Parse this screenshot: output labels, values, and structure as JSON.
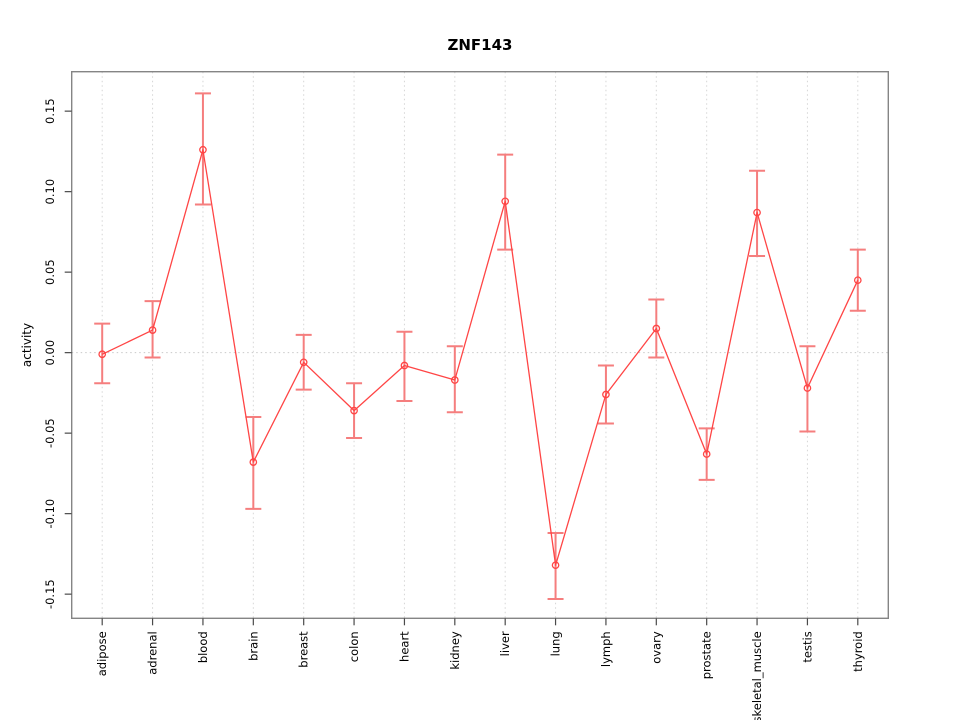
{
  "page": {
    "background": "#ffffff"
  },
  "chart_data": {
    "type": "line",
    "title": "ZNF143",
    "xlabel": "",
    "ylabel": "activity",
    "legend_position": "none",
    "marker": "open-circle",
    "error_bars": true,
    "categories": [
      "adipose",
      "adrenal",
      "blood",
      "brain",
      "breast",
      "colon",
      "heart",
      "kidney",
      "liver",
      "lung",
      "lymph",
      "ovary",
      "prostate",
      "skeletal_muscle",
      "testis",
      "thyroid"
    ],
    "series": [
      {
        "name": "ZNF143 activity",
        "values": [
          -0.001,
          0.014,
          0.126,
          -0.068,
          -0.006,
          -0.036,
          -0.008,
          -0.017,
          0.094,
          -0.132,
          -0.026,
          0.015,
          -0.063,
          0.087,
          -0.022,
          0.045
        ],
        "lower": [
          -0.019,
          -0.003,
          0.092,
          -0.097,
          -0.023,
          -0.053,
          -0.03,
          -0.037,
          0.064,
          -0.153,
          -0.044,
          -0.003,
          -0.079,
          0.06,
          -0.049,
          0.026
        ],
        "upper": [
          0.018,
          0.032,
          0.161,
          -0.04,
          0.011,
          -0.019,
          0.013,
          0.004,
          0.123,
          -0.112,
          -0.008,
          0.033,
          -0.047,
          0.113,
          0.004,
          0.064
        ]
      }
    ],
    "ylim": [
      -0.165,
      0.1745
    ],
    "yticks": [
      0.15,
      0.1,
      0.05,
      0.0,
      -0.05,
      -0.1,
      -0.15
    ],
    "ytick_labels": [
      "0.15",
      "0.10",
      "0.05",
      "0.00",
      "-0.05",
      "-0.10",
      "-0.15"
    ],
    "grid": {
      "vertical": "dotted line at each category",
      "horizontal": "dotted line at y=0 only"
    },
    "colors": {
      "line": "#ff4545",
      "marker_stroke": "#ff4545",
      "errorbar": "#f57e7e",
      "grid": "#d6d6d6",
      "zero_line": "#c9c9c9",
      "box": "#858585",
      "tick": "#4a4a4a",
      "text": "#000000",
      "background": "#ffffff"
    }
  }
}
